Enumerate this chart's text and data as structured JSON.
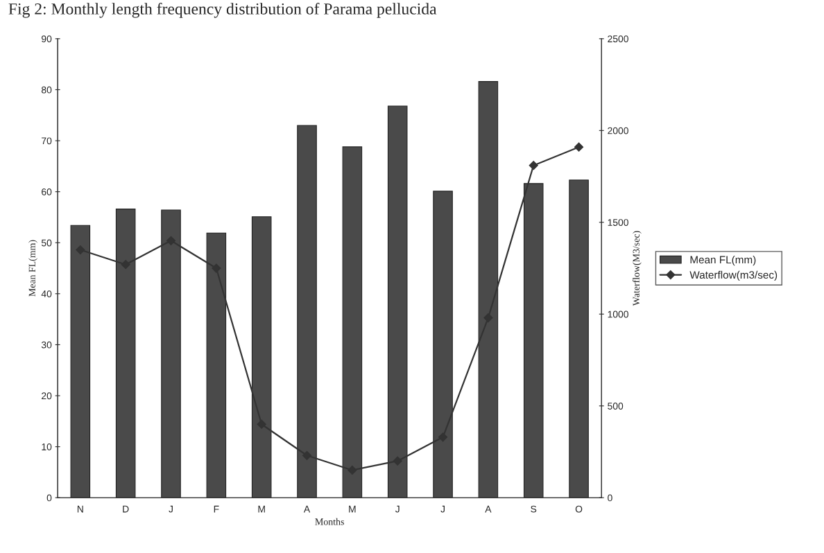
{
  "chart_data": {
    "type": "bar",
    "title": "Fig 2: Monthly length frequency distribution of Parama pellucida",
    "xlabel": "Months",
    "ylabel": "Mean FL(mm)",
    "y2label": "Waterflow(M3/sec)",
    "categories": [
      "N",
      "D",
      "J",
      "F",
      "M",
      "A",
      "M",
      "J",
      "J",
      "A",
      "S",
      "O"
    ],
    "series": [
      {
        "name": "Mean FL(mm)",
        "color": "#4a4a4a",
        "values": [
          53.4,
          56.6,
          56.4,
          51.9,
          55.1,
          73.0,
          68.8,
          76.8,
          60.1,
          81.6,
          61.6,
          62.3
        ]
      },
      {
        "name": "Waterflow(m3/sec)",
        "type": "line",
        "axis": "y2",
        "color": "#333333",
        "marker": "diamond",
        "values": [
          1350,
          1270,
          1400,
          1250,
          400,
          230,
          150,
          200,
          330,
          980,
          1810,
          1910
        ]
      }
    ],
    "ylim": [
      0,
      90
    ],
    "yticks": [
      0,
      10,
      20,
      30,
      40,
      50,
      60,
      70,
      80,
      90
    ],
    "y2lim": [
      0,
      2500
    ],
    "y2ticks": [
      0,
      500,
      1000,
      1500,
      2000,
      2500
    ],
    "grid": false,
    "legend": "right"
  }
}
